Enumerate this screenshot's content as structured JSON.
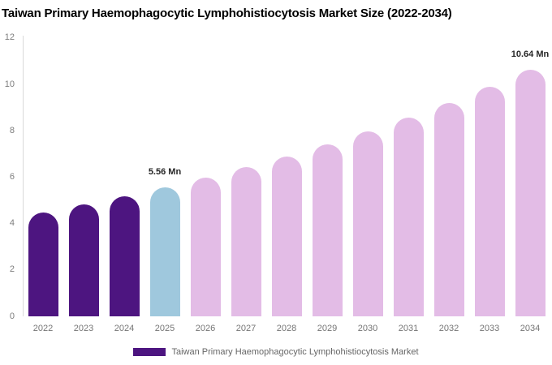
{
  "title": "Taiwan Primary Haemophagocytic Lymphohistiocytosis Market Size (2022-2034)",
  "legend": {
    "label": "Taiwan Primary Haemophagocytic Lymphohistiocytosis Market",
    "swatch_color": "#4d1580"
  },
  "colors": {
    "historical_bar": "#4d1580",
    "base_year_bar": "#9fc8dd",
    "forecast_bar": "#e3bce6",
    "axis_line": "#d9d9d9",
    "tick_text": "#7d7d7d"
  },
  "chart_data": {
    "type": "bar",
    "title": "Taiwan Primary Haemophagocytic Lymphohistiocytosis Market Size (2022-2034)",
    "xlabel": "",
    "ylabel": "",
    "unit": "Mn",
    "categories": [
      "2022",
      "2023",
      "2024",
      "2025",
      "2026",
      "2027",
      "2028",
      "2029",
      "2030",
      "2031",
      "2032",
      "2033",
      "2034"
    ],
    "values": [
      4.48,
      4.81,
      5.17,
      5.56,
      5.98,
      6.42,
      6.9,
      7.42,
      7.97,
      8.57,
      9.21,
      9.9,
      10.64
    ],
    "bar_colors": [
      "#4d1580",
      "#4d1580",
      "#4d1580",
      "#9fc8dd",
      "#e3bce6",
      "#e3bce6",
      "#e3bce6",
      "#e3bce6",
      "#e3bce6",
      "#e3bce6",
      "#e3bce6",
      "#e3bce6",
      "#e3bce6"
    ],
    "annotations": [
      {
        "category": "2025",
        "text": "5.56 Mn"
      },
      {
        "category": "2034",
        "text": "10.64 Mn"
      }
    ],
    "ylim": [
      0,
      12
    ],
    "yticks": [
      0,
      2,
      4,
      6,
      8,
      10,
      12
    ],
    "grid": false,
    "legend_position": "bottom-center",
    "legend_entries": [
      "Taiwan Primary Haemophagocytic Lymphohistiocytosis Market"
    ]
  }
}
